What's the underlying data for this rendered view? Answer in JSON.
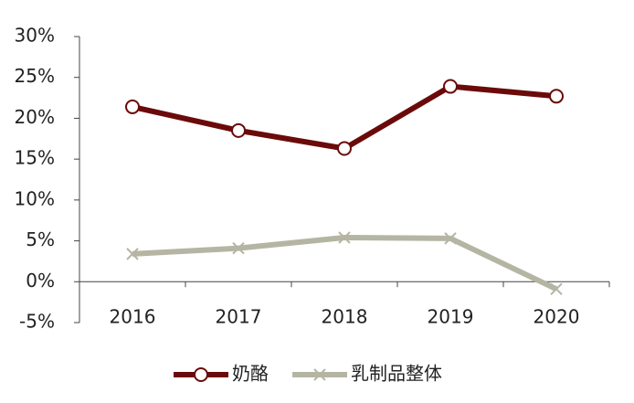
{
  "chart_data": {
    "type": "line",
    "categories": [
      "2016",
      "2017",
      "2018",
      "2019",
      "2020"
    ],
    "series": [
      {
        "name": "奶酪",
        "color": "#6b0a0a",
        "marker": "circle",
        "values": [
          21.4,
          18.5,
          16.3,
          23.9,
          22.7
        ]
      },
      {
        "name": "乳制品整体",
        "color": "#b5b5a3",
        "marker": "x",
        "values": [
          3.4,
          4.1,
          5.4,
          5.3,
          -0.9
        ]
      }
    ],
    "ylim": [
      -5,
      30
    ],
    "yticks": [
      {
        "value": -5,
        "label": "-5%"
      },
      {
        "value": 0,
        "label": "0%"
      },
      {
        "value": 5,
        "label": "5%"
      },
      {
        "value": 10,
        "label": "10%"
      },
      {
        "value": 15,
        "label": "15%"
      },
      {
        "value": 20,
        "label": "20%"
      },
      {
        "value": 25,
        "label": "25%"
      },
      {
        "value": 30,
        "label": "30%"
      }
    ],
    "grid": false,
    "legend": "bottom"
  }
}
